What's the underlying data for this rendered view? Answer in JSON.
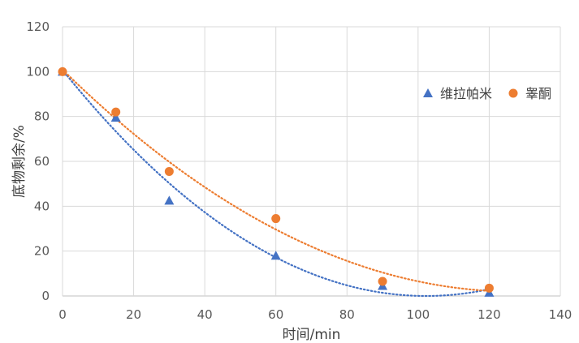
{
  "chart_data": {
    "type": "scatter",
    "title": "",
    "xlabel": "时间/min",
    "ylabel": "底物剩余/%",
    "xlim": [
      0,
      140
    ],
    "ylim": [
      0,
      120
    ],
    "xticks": [
      0,
      20,
      40,
      60,
      80,
      100,
      120,
      140
    ],
    "yticks": [
      0,
      20,
      40,
      60,
      80,
      100,
      120
    ],
    "grid": true,
    "legend_position": "right",
    "series": [
      {
        "name": "维拉帕米",
        "marker": "triangle",
        "color": "#4472C4",
        "x": [
          0,
          15,
          30,
          60,
          90,
          120
        ],
        "y": [
          100,
          79.5,
          42.5,
          18,
          4.5,
          1.5
        ],
        "trendline": {
          "type": "polynomial-2",
          "style": "dotted"
        }
      },
      {
        "name": "睾酮",
        "marker": "circle",
        "color": "#ED7D31",
        "x": [
          0,
          15,
          30,
          60,
          90,
          120
        ],
        "y": [
          100,
          82,
          55.5,
          34.5,
          6.5,
          3.5
        ],
        "trendline": {
          "type": "polynomial-2",
          "style": "dotted"
        }
      }
    ]
  }
}
